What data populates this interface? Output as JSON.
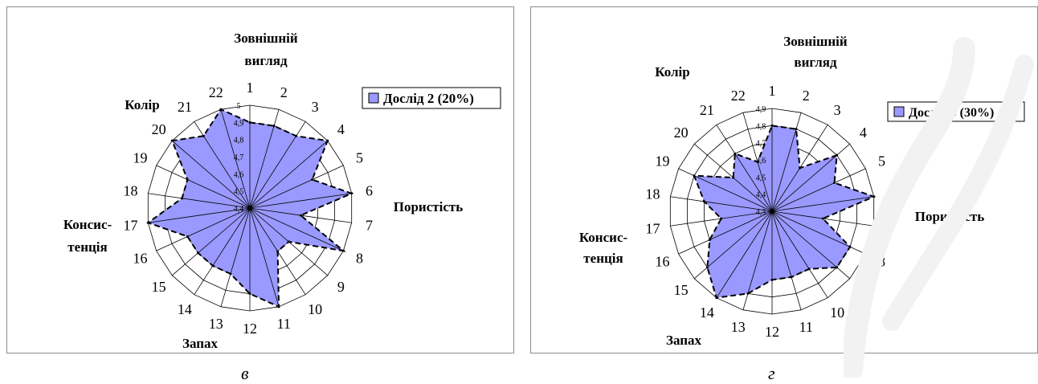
{
  "chart_data": [
    {
      "type": "radar",
      "panel_letter": "в",
      "categories": [
        "1",
        "2",
        "3",
        "4",
        "5",
        "6",
        "7",
        "8",
        "9",
        "10",
        "11",
        "12",
        "13",
        "14",
        "15",
        "16",
        "17",
        "18",
        "19",
        "20",
        "21",
        "22"
      ],
      "r_ticks": [
        "4,4",
        "4,5",
        "4,6",
        "4,7",
        "4,8",
        "4,9",
        "5"
      ],
      "rlim": [
        4.4,
        5.0
      ],
      "series": [
        {
          "name": "Дослід 2 (20%)",
          "values": [
            4.9,
            4.9,
            4.9,
            5.0,
            4.8,
            5.0,
            4.7,
            5.0,
            4.7,
            4.7,
            5.0,
            4.9,
            4.8,
            4.8,
            4.8,
            4.8,
            5.0,
            4.8,
            4.8,
            5.0,
            4.9,
            5.0
          ]
        }
      ],
      "group_labels": [
        {
          "lines": [
            "Зовнішній",
            "вигляд"
          ]
        },
        {
          "lines": [
            "Колір"
          ]
        },
        {
          "lines": [
            "Пористість"
          ]
        },
        {
          "lines": [
            "Консис-",
            "тенція"
          ]
        },
        {
          "lines": [
            "Запах"
          ]
        }
      ],
      "legend_position": "top-right",
      "fill_color": "#9999ff",
      "grid": true
    },
    {
      "type": "radar",
      "panel_letter": "г",
      "categories": [
        "1",
        "2",
        "3",
        "4",
        "5",
        "6",
        "7",
        "8",
        "9",
        "10",
        "11",
        "12",
        "13",
        "14",
        "15",
        "16",
        "17",
        "18",
        "19",
        "20",
        "21",
        "22"
      ],
      "r_ticks": [
        "4,3",
        "4,4",
        "4,5",
        "4,6",
        "4,7",
        "4,8",
        "4,9"
      ],
      "rlim": [
        4.3,
        4.9
      ],
      "series": [
        {
          "name": "Дослід 3 (30%)",
          "values": [
            4.8,
            4.8,
            4.6,
            4.8,
            4.7,
            4.9,
            4.6,
            4.8,
            4.8,
            4.7,
            4.7,
            4.7,
            4.8,
            4.9,
            4.8,
            4.7,
            4.6,
            4.7,
            4.8,
            4.6,
            4.7,
            4.6
          ]
        }
      ],
      "group_labels": [
        {
          "lines": [
            "Зовнішній",
            "вигляд"
          ]
        },
        {
          "lines": [
            "Колір"
          ]
        },
        {
          "lines": [
            "Пористість"
          ]
        },
        {
          "lines": [
            "Консис-",
            "тенція"
          ]
        },
        {
          "lines": [
            "Запах"
          ]
        }
      ],
      "legend_position": "top-right",
      "fill_color": "#9999ff",
      "grid": true
    }
  ]
}
